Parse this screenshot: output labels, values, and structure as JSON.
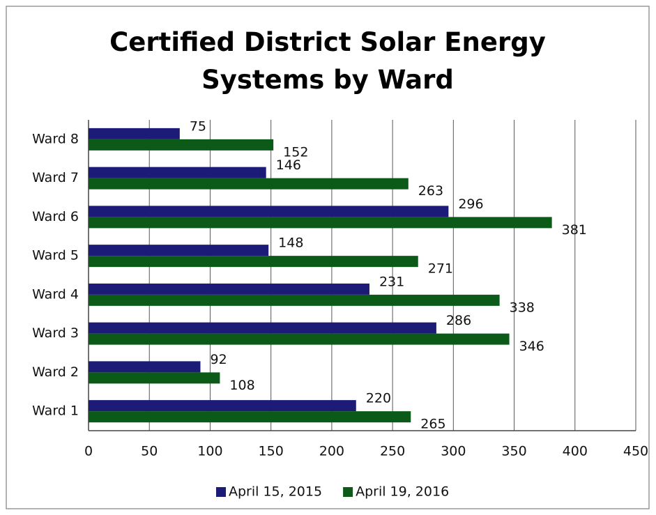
{
  "chart_data": {
    "type": "hbar",
    "title": "Certified District Solar Energy Systems by Ward",
    "categories": [
      "Ward 1",
      "Ward 2",
      "Ward 3",
      "Ward 4",
      "Ward 5",
      "Ward 6",
      "Ward 7",
      "Ward 8"
    ],
    "series": [
      {
        "name": "April 15, 2015",
        "color": "#1c1c78",
        "values": [
          220,
          92,
          286,
          231,
          148,
          296,
          146,
          75
        ]
      },
      {
        "name": "April 19, 2016",
        "color": "#0b5a18",
        "values": [
          265,
          108,
          346,
          338,
          271,
          381,
          263,
          152
        ]
      }
    ],
    "xlim": [
      0,
      450
    ],
    "xticks": [
      0,
      50,
      100,
      150,
      200,
      250,
      300,
      350,
      400,
      450
    ],
    "grid": true,
    "legend": "bottom"
  }
}
